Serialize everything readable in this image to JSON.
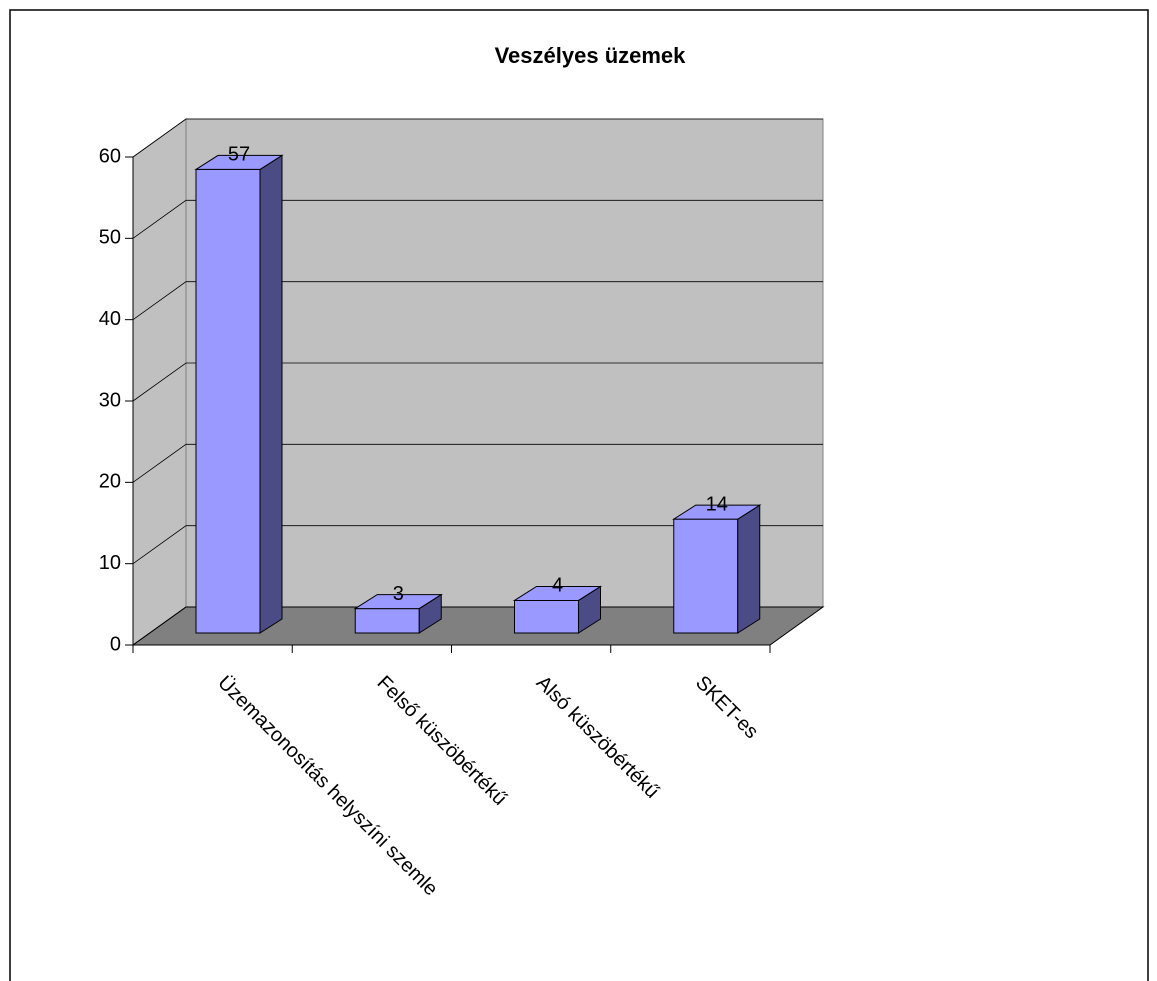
{
  "chart_data": {
    "type": "bar3d",
    "title": "Veszélyes üzemek",
    "categories": [
      "Üzemazonosítás helyszíni szemle",
      "Felső küszöbértékű",
      "Alsó küszöbértékű",
      "SKET-es"
    ],
    "values": [
      57,
      3,
      4,
      14
    ],
    "color": "#9999ff",
    "ylim": [
      0,
      60
    ],
    "yticks": [
      0,
      10,
      20,
      30,
      40,
      50,
      60
    ],
    "grid": true
  }
}
